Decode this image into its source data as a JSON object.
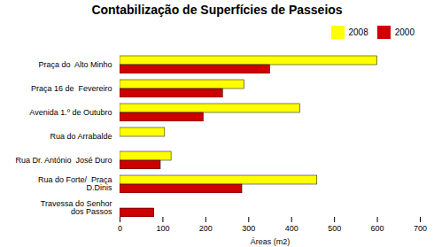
{
  "chart_data": {
    "type": "bar",
    "orientation": "horizontal",
    "title": "Contabilização de Superfícies de Passeios",
    "xlabel": "Áreas (m2)",
    "categories": [
      "Travessa do Senhor\ndos Passos",
      "Rua do Forte/  Praça\n    D.Dinis",
      "Rua Dr. António  José Duro",
      "Rua do Arrabalde",
      "Avenida 1.º de Outubro",
      "Praça 16 de  Fevereiro",
      "Praça do  Alto Minho"
    ],
    "series": [
      {
        "name": "2008",
        "color": "#ffff00",
        "values": [
          0,
          460,
          120,
          105,
          420,
          290,
          600
        ]
      },
      {
        "name": "2000",
        "color": "#cc0000",
        "values": [
          80,
          285,
          95,
          0,
          195,
          240,
          350
        ]
      }
    ],
    "xlim": [
      0,
      700
    ],
    "xticks": [
      0,
      100,
      200,
      300,
      400,
      500,
      600,
      700
    ],
    "legend": "upper right",
    "grid": false
  }
}
